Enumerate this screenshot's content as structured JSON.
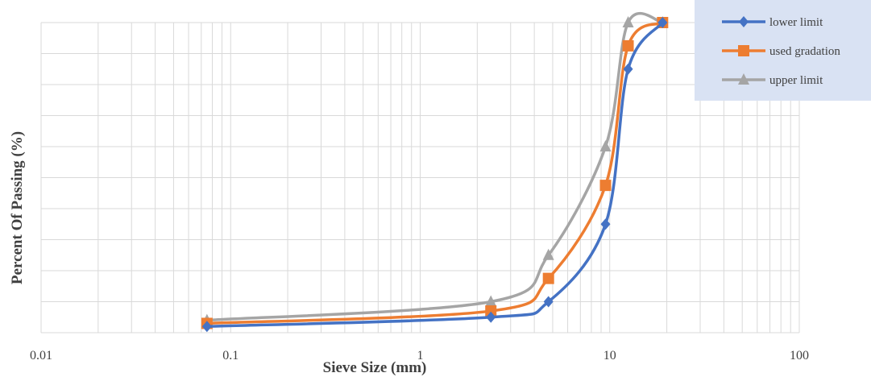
{
  "chart_data": {
    "type": "line",
    "title": "",
    "xlabel": "Sieve Size (mm)",
    "ylabel": "Percent Of  Passing (%)",
    "xscale": "log",
    "xlim": [
      0.01,
      100
    ],
    "ylim": [
      0,
      100
    ],
    "x_tick_labels": [
      "0.01",
      "0.1",
      "1",
      "10",
      "100"
    ],
    "grid": true,
    "legend_position": "top-right",
    "series": [
      {
        "name": "lower limit",
        "color": "#4472C4",
        "marker": "diamond",
        "x": [
          0.075,
          2.36,
          4.75,
          9.5,
          12.5,
          19
        ],
        "y": [
          2,
          5,
          10,
          35,
          85,
          100
        ]
      },
      {
        "name": "used gradation",
        "color": "#ED7D31",
        "marker": "square",
        "x": [
          0.075,
          2.36,
          4.75,
          9.5,
          12.5,
          19
        ],
        "y": [
          3,
          7,
          17.5,
          47.5,
          92.5,
          100
        ]
      },
      {
        "name": "upper limit",
        "color": "#A5A5A5",
        "marker": "triangle",
        "x": [
          0.075,
          2.36,
          4.75,
          9.5,
          12.5,
          19
        ],
        "y": [
          4,
          10,
          25,
          60,
          100,
          100
        ]
      }
    ]
  }
}
